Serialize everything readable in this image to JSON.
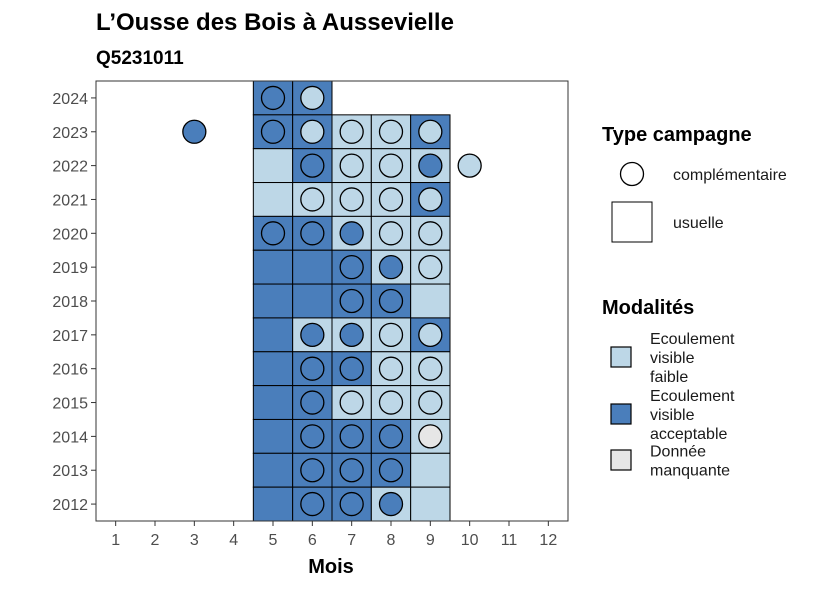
{
  "chart_data": {
    "type": "heatmap",
    "title": "L’Ousse des Bois à Aussevielle",
    "subtitle": "Q5231011",
    "xlabel": "Mois",
    "ylabel": "",
    "x_ticks": [
      "1",
      "2",
      "3",
      "4",
      "5",
      "6",
      "7",
      "8",
      "9",
      "10",
      "11",
      "12"
    ],
    "y_ticks": [
      "2012",
      "2013",
      "2014",
      "2015",
      "2016",
      "2017",
      "2018",
      "2019",
      "2020",
      "2021",
      "2022",
      "2023",
      "2024"
    ],
    "xlim": [
      0.5,
      12.5
    ],
    "ylim": [
      2011.5,
      2024.5
    ],
    "grid": false,
    "colors": {
      "faible": "#bdd7e7",
      "acceptable": "#4a7ebb",
      "manquante": "#e6e6e6"
    },
    "legend_type": {
      "title": "Type campagne",
      "items": [
        {
          "shape": "circle",
          "label": "complémentaire"
        },
        {
          "shape": "square",
          "label": "usuelle"
        }
      ]
    },
    "legend_modalites": {
      "title": "Modalités",
      "items": [
        {
          "key": "faible",
          "lines": [
            "Ecoulement",
            "visible",
            "faible"
          ]
        },
        {
          "key": "acceptable",
          "lines": [
            "Ecoulement",
            "visible",
            "acceptable"
          ]
        },
        {
          "key": "manquante",
          "lines": [
            "Donnée",
            "manquante"
          ]
        }
      ]
    },
    "tiles": [
      {
        "year": 2024,
        "month": 5,
        "value": "acceptable"
      },
      {
        "year": 2024,
        "month": 6,
        "value": "acceptable"
      },
      {
        "year": 2023,
        "month": 5,
        "value": "acceptable"
      },
      {
        "year": 2023,
        "month": 6,
        "value": "acceptable"
      },
      {
        "year": 2023,
        "month": 7,
        "value": "faible"
      },
      {
        "year": 2023,
        "month": 8,
        "value": "faible"
      },
      {
        "year": 2023,
        "month": 9,
        "value": "acceptable"
      },
      {
        "year": 2022,
        "month": 5,
        "value": "faible"
      },
      {
        "year": 2022,
        "month": 6,
        "value": "acceptable"
      },
      {
        "year": 2022,
        "month": 7,
        "value": "faible"
      },
      {
        "year": 2022,
        "month": 8,
        "value": "faible"
      },
      {
        "year": 2022,
        "month": 9,
        "value": "faible"
      },
      {
        "year": 2021,
        "month": 5,
        "value": "faible"
      },
      {
        "year": 2021,
        "month": 6,
        "value": "faible"
      },
      {
        "year": 2021,
        "month": 7,
        "value": "faible"
      },
      {
        "year": 2021,
        "month": 8,
        "value": "faible"
      },
      {
        "year": 2021,
        "month": 9,
        "value": "acceptable"
      },
      {
        "year": 2020,
        "month": 5,
        "value": "acceptable"
      },
      {
        "year": 2020,
        "month": 6,
        "value": "acceptable"
      },
      {
        "year": 2020,
        "month": 7,
        "value": "faible"
      },
      {
        "year": 2020,
        "month": 8,
        "value": "faible"
      },
      {
        "year": 2020,
        "month": 9,
        "value": "faible"
      },
      {
        "year": 2019,
        "month": 5,
        "value": "acceptable"
      },
      {
        "year": 2019,
        "month": 6,
        "value": "acceptable"
      },
      {
        "year": 2019,
        "month": 7,
        "value": "acceptable"
      },
      {
        "year": 2019,
        "month": 8,
        "value": "faible"
      },
      {
        "year": 2019,
        "month": 9,
        "value": "faible"
      },
      {
        "year": 2018,
        "month": 5,
        "value": "acceptable"
      },
      {
        "year": 2018,
        "month": 6,
        "value": "acceptable"
      },
      {
        "year": 2018,
        "month": 7,
        "value": "acceptable"
      },
      {
        "year": 2018,
        "month": 8,
        "value": "acceptable"
      },
      {
        "year": 2018,
        "month": 9,
        "value": "faible"
      },
      {
        "year": 2017,
        "month": 5,
        "value": "acceptable"
      },
      {
        "year": 2017,
        "month": 6,
        "value": "faible"
      },
      {
        "year": 2017,
        "month": 7,
        "value": "faible"
      },
      {
        "year": 2017,
        "month": 8,
        "value": "faible"
      },
      {
        "year": 2017,
        "month": 9,
        "value": "acceptable"
      },
      {
        "year": 2016,
        "month": 5,
        "value": "acceptable"
      },
      {
        "year": 2016,
        "month": 6,
        "value": "acceptable"
      },
      {
        "year": 2016,
        "month": 7,
        "value": "acceptable"
      },
      {
        "year": 2016,
        "month": 8,
        "value": "faible"
      },
      {
        "year": 2016,
        "month": 9,
        "value": "faible"
      },
      {
        "year": 2015,
        "month": 5,
        "value": "acceptable"
      },
      {
        "year": 2015,
        "month": 6,
        "value": "acceptable"
      },
      {
        "year": 2015,
        "month": 7,
        "value": "faible"
      },
      {
        "year": 2015,
        "month": 8,
        "value": "faible"
      },
      {
        "year": 2015,
        "month": 9,
        "value": "faible"
      },
      {
        "year": 2014,
        "month": 5,
        "value": "acceptable"
      },
      {
        "year": 2014,
        "month": 6,
        "value": "acceptable"
      },
      {
        "year": 2014,
        "month": 7,
        "value": "acceptable"
      },
      {
        "year": 2014,
        "month": 8,
        "value": "acceptable"
      },
      {
        "year": 2014,
        "month": 9,
        "value": "faible"
      },
      {
        "year": 2013,
        "month": 5,
        "value": "acceptable"
      },
      {
        "year": 2013,
        "month": 6,
        "value": "acceptable"
      },
      {
        "year": 2013,
        "month": 7,
        "value": "acceptable"
      },
      {
        "year": 2013,
        "month": 8,
        "value": "acceptable"
      },
      {
        "year": 2013,
        "month": 9,
        "value": "faible"
      },
      {
        "year": 2012,
        "month": 5,
        "value": "acceptable"
      },
      {
        "year": 2012,
        "month": 6,
        "value": "acceptable"
      },
      {
        "year": 2012,
        "month": 7,
        "value": "acceptable"
      },
      {
        "year": 2012,
        "month": 8,
        "value": "faible"
      },
      {
        "year": 2012,
        "month": 9,
        "value": "faible"
      }
    ],
    "circles": [
      {
        "year": 2024,
        "month": 5,
        "value": "acceptable"
      },
      {
        "year": 2024,
        "month": 6,
        "value": "faible"
      },
      {
        "year": 2023,
        "month": 3,
        "value": "acceptable"
      },
      {
        "year": 2023,
        "month": 5,
        "value": "acceptable"
      },
      {
        "year": 2023,
        "month": 6,
        "value": "faible"
      },
      {
        "year": 2023,
        "month": 7,
        "value": "faible"
      },
      {
        "year": 2023,
        "month": 8,
        "value": "faible"
      },
      {
        "year": 2023,
        "month": 9,
        "value": "faible"
      },
      {
        "year": 2022,
        "month": 6,
        "value": "acceptable"
      },
      {
        "year": 2022,
        "month": 7,
        "value": "faible"
      },
      {
        "year": 2022,
        "month": 8,
        "value": "faible"
      },
      {
        "year": 2022,
        "month": 9,
        "value": "acceptable"
      },
      {
        "year": 2022,
        "month": 10,
        "value": "faible"
      },
      {
        "year": 2021,
        "month": 6,
        "value": "faible"
      },
      {
        "year": 2021,
        "month": 7,
        "value": "faible"
      },
      {
        "year": 2021,
        "month": 8,
        "value": "faible"
      },
      {
        "year": 2021,
        "month": 9,
        "value": "faible"
      },
      {
        "year": 2020,
        "month": 5,
        "value": "acceptable"
      },
      {
        "year": 2020,
        "month": 6,
        "value": "acceptable"
      },
      {
        "year": 2020,
        "month": 7,
        "value": "acceptable"
      },
      {
        "year": 2020,
        "month": 8,
        "value": "faible"
      },
      {
        "year": 2020,
        "month": 9,
        "value": "faible"
      },
      {
        "year": 2019,
        "month": 7,
        "value": "acceptable"
      },
      {
        "year": 2019,
        "month": 8,
        "value": "acceptable"
      },
      {
        "year": 2019,
        "month": 9,
        "value": "faible"
      },
      {
        "year": 2018,
        "month": 7,
        "value": "acceptable"
      },
      {
        "year": 2018,
        "month": 8,
        "value": "acceptable"
      },
      {
        "year": 2017,
        "month": 6,
        "value": "acceptable"
      },
      {
        "year": 2017,
        "month": 7,
        "value": "acceptable"
      },
      {
        "year": 2017,
        "month": 8,
        "value": "faible"
      },
      {
        "year": 2017,
        "month": 9,
        "value": "faible"
      },
      {
        "year": 2016,
        "month": 6,
        "value": "acceptable"
      },
      {
        "year": 2016,
        "month": 7,
        "value": "acceptable"
      },
      {
        "year": 2016,
        "month": 8,
        "value": "faible"
      },
      {
        "year": 2016,
        "month": 9,
        "value": "faible"
      },
      {
        "year": 2015,
        "month": 6,
        "value": "acceptable"
      },
      {
        "year": 2015,
        "month": 7,
        "value": "faible"
      },
      {
        "year": 2015,
        "month": 8,
        "value": "faible"
      },
      {
        "year": 2015,
        "month": 9,
        "value": "faible"
      },
      {
        "year": 2014,
        "month": 6,
        "value": "acceptable"
      },
      {
        "year": 2014,
        "month": 7,
        "value": "acceptable"
      },
      {
        "year": 2014,
        "month": 8,
        "value": "acceptable"
      },
      {
        "year": 2014,
        "month": 9,
        "value": "manquante"
      },
      {
        "year": 2013,
        "month": 6,
        "value": "acceptable"
      },
      {
        "year": 2013,
        "month": 7,
        "value": "acceptable"
      },
      {
        "year": 2013,
        "month": 8,
        "value": "acceptable"
      },
      {
        "year": 2012,
        "month": 6,
        "value": "acceptable"
      },
      {
        "year": 2012,
        "month": 7,
        "value": "acceptable"
      },
      {
        "year": 2012,
        "month": 8,
        "value": "acceptable"
      }
    ]
  }
}
